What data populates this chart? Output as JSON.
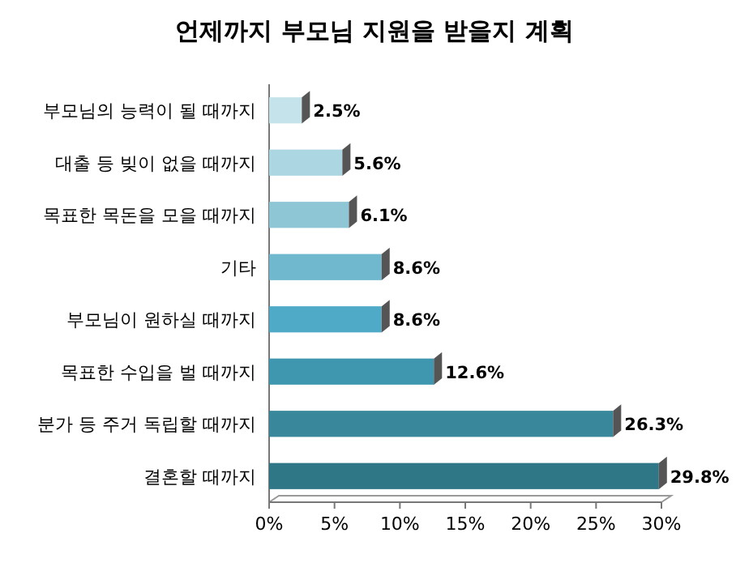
{
  "chart_data": {
    "type": "bar",
    "orientation": "horizontal",
    "title": "언제까지 부모님 지원을 받을지 계획",
    "categories": [
      "부모님의 능력이 될 때까지",
      "대출 등 빚이 없을 때까지",
      "목표한 목돈을 모을 때까지",
      "기타",
      "부모님이 원하실 때까지",
      "목표한 수입을 벌 때까지",
      "분가 등 주거 독립할 때까지",
      "결혼할 때까지"
    ],
    "values": [
      2.5,
      5.6,
      6.1,
      8.6,
      8.6,
      12.6,
      26.3,
      29.8
    ],
    "value_labels": [
      "2.5%",
      "5.6%",
      "6.1%",
      "8.6%",
      "8.6%",
      "12.6%",
      "26.3%",
      "29.8%"
    ],
    "colors": [
      "#c5e3ea",
      "#acd7e2",
      "#8fc6d6",
      "#70b8cd",
      "#4eaac6",
      "#3e97ae",
      "#38879a",
      "#2f7686"
    ],
    "xlim": [
      0,
      30
    ],
    "xticks": [
      {
        "value": 0,
        "label": "0%"
      },
      {
        "value": 5,
        "label": "5%"
      },
      {
        "value": 10,
        "label": "10%"
      },
      {
        "value": 15,
        "label": "15%"
      },
      {
        "value": 20,
        "label": "20%"
      },
      {
        "value": 25,
        "label": "25%"
      },
      {
        "value": 30,
        "label": "30%"
      }
    ],
    "grid": false
  }
}
